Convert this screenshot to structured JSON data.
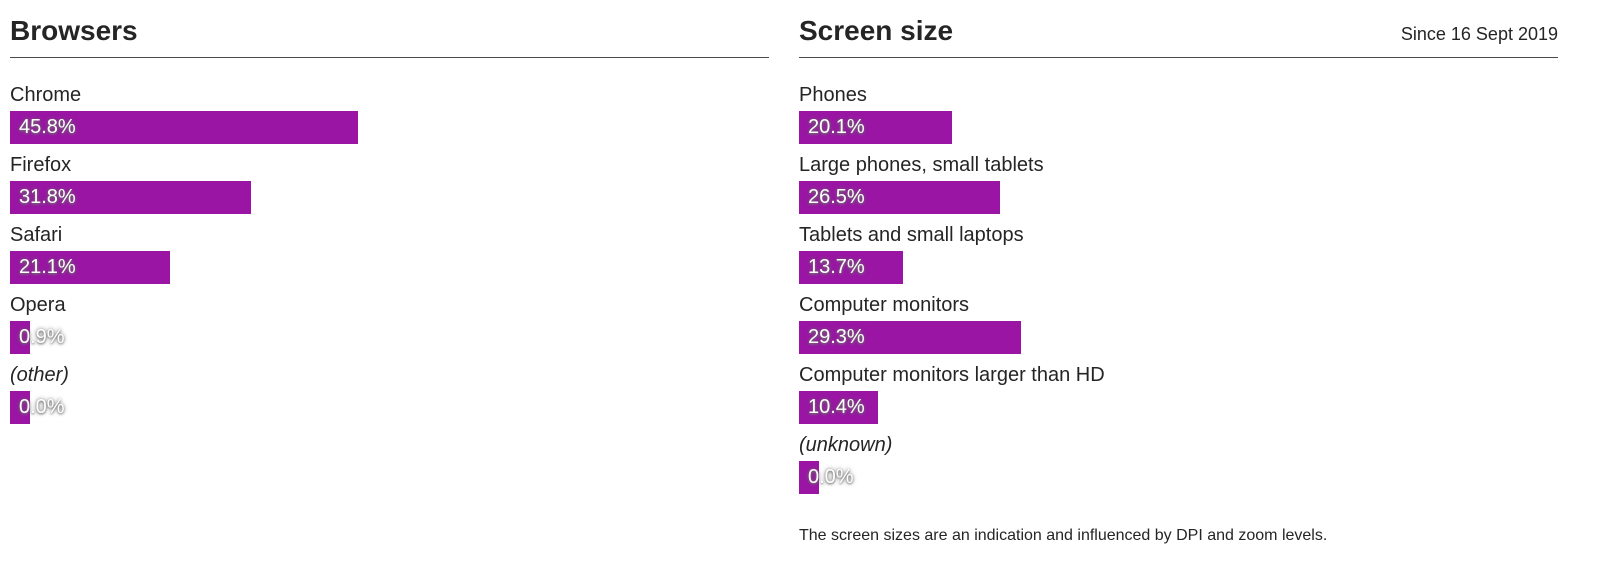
{
  "colors": {
    "bar": "#9a15a4",
    "text": "#252525",
    "value_text": "#ffffff",
    "header_rule": "#4a4a4a"
  },
  "chart_data": [
    {
      "id": "browsers",
      "type": "bar",
      "orientation": "horizontal",
      "title": "Browsers",
      "subtitle": "",
      "unit": "%",
      "xlim": [
        0,
        100
      ],
      "grid": false,
      "legend": "none",
      "categories": [
        "Chrome",
        "Firefox",
        "Safari",
        "Opera",
        "(other)"
      ],
      "values": [
        45.8,
        31.8,
        21.1,
        0.9,
        0.0
      ],
      "value_labels": [
        "45.8%",
        "31.8%",
        "21.1%",
        "0.9%",
        "0.0%"
      ],
      "italic_categories": [
        "(other)"
      ],
      "footnote": ""
    },
    {
      "id": "screen-size",
      "type": "bar",
      "orientation": "horizontal",
      "title": "Screen size",
      "subtitle": "Since 16 Sept 2019",
      "unit": "%",
      "xlim": [
        0,
        100
      ],
      "grid": false,
      "legend": "none",
      "categories": [
        "Phones",
        "Large phones, small tablets",
        "Tablets and small laptops",
        "Computer monitors",
        "Computer monitors larger than HD",
        "(unknown)"
      ],
      "values": [
        20.1,
        26.5,
        13.7,
        29.3,
        10.4,
        0.0
      ],
      "value_labels": [
        "20.1%",
        "26.5%",
        "13.7%",
        "29.3%",
        "10.4%",
        "0.0%"
      ],
      "italic_categories": [
        "(unknown)"
      ],
      "footnote": "The screen sizes are an indication and influenced by DPI and zoom levels."
    }
  ]
}
